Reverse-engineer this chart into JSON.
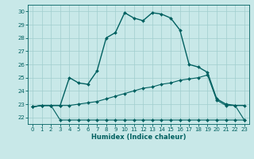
{
  "xlabel": "Humidex (Indice chaleur)",
  "bg_color": "#c8e8e8",
  "grid_color": "#a0cece",
  "line_color": "#006060",
  "xlim": [
    -0.5,
    23.5
  ],
  "ylim": [
    21.5,
    30.5
  ],
  "yticks": [
    22,
    23,
    24,
    25,
    26,
    27,
    28,
    29,
    30
  ],
  "xticks": [
    0,
    1,
    2,
    3,
    4,
    5,
    6,
    7,
    8,
    9,
    10,
    11,
    12,
    13,
    14,
    15,
    16,
    17,
    18,
    19,
    20,
    21,
    22,
    23
  ],
  "s1x": [
    0,
    1,
    2,
    3,
    4,
    5,
    6,
    7,
    8,
    9,
    10,
    11,
    12,
    13,
    14,
    15,
    16,
    17,
    18,
    19,
    20,
    21,
    22,
    23
  ],
  "s1y": [
    22.8,
    22.9,
    22.9,
    21.8,
    21.8,
    21.8,
    21.8,
    21.8,
    21.8,
    21.8,
    21.8,
    21.8,
    21.8,
    21.8,
    21.8,
    21.8,
    21.8,
    21.8,
    21.8,
    21.8,
    21.8,
    21.8,
    21.8,
    21.8
  ],
  "s2x": [
    0,
    1,
    2,
    3,
    4,
    5,
    6,
    7,
    8,
    9,
    10,
    11,
    12,
    13,
    14,
    15,
    16,
    17,
    18,
    19,
    20,
    21,
    22,
    23
  ],
  "s2y": [
    22.8,
    22.9,
    22.9,
    22.9,
    22.9,
    23.0,
    23.1,
    23.2,
    23.4,
    23.6,
    23.8,
    24.0,
    24.2,
    24.3,
    24.5,
    24.6,
    24.8,
    24.9,
    25.0,
    25.2,
    23.3,
    22.9,
    22.9,
    21.8
  ],
  "s3x": [
    0,
    1,
    2,
    3,
    4,
    5,
    6,
    7,
    8,
    9,
    10,
    11,
    12,
    13,
    14,
    15,
    16,
    17,
    18,
    19,
    20,
    21,
    22,
    23
  ],
  "s3y": [
    22.8,
    22.9,
    22.9,
    22.9,
    25.0,
    24.6,
    24.5,
    25.5,
    28.0,
    28.4,
    29.9,
    29.5,
    29.3,
    29.9,
    29.8,
    29.5,
    28.6,
    26.0,
    25.8,
    25.4,
    23.4,
    23.0,
    22.9,
    22.9
  ]
}
